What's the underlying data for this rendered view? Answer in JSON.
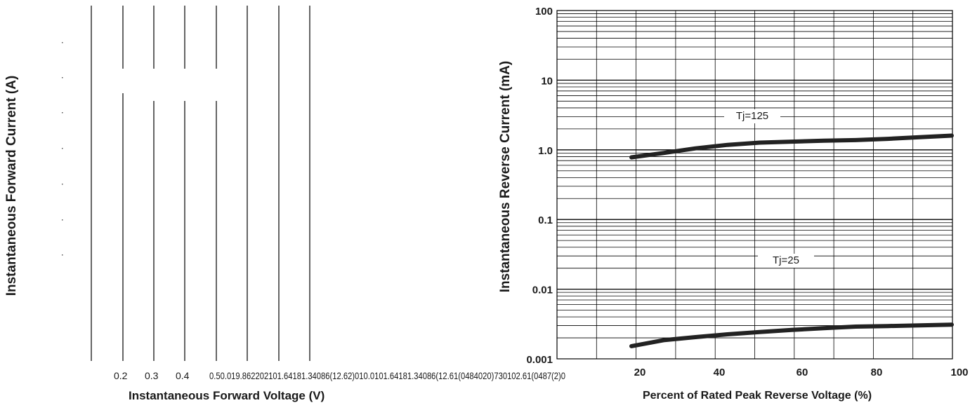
{
  "chart_data": [
    {
      "type": "line",
      "title": "",
      "xlabel": "Instantaneous Forward Voltage (V)",
      "ylabel": "Instantaneous Forward Current (A)",
      "x_tick_labels": [
        "0.2",
        "0.3",
        "0.4",
        "0.50.019.862202101.64181.34086(12.62)010.0101.64181.34086(12.61(0484020)730102.61(0487(2)0"
      ],
      "series": []
    },
    {
      "type": "line",
      "title": "",
      "xlabel": "Percent of Rated Peak Reverse Voltage (%)",
      "ylabel": "Instantaneous Reverse Current (mA)",
      "yscale": "log",
      "ylim": [
        0.001,
        100
      ],
      "xlim": [
        0,
        100
      ],
      "grid": true,
      "y_tick_labels": [
        "100",
        "10",
        "1.0",
        "0.1",
        "0.01",
        "0.001"
      ],
      "x_tick_labels": [
        "20",
        "40",
        "60",
        "80",
        "100"
      ],
      "x_tick_values": [
        20,
        40,
        60,
        80,
        100
      ],
      "series": [
        {
          "name": "Tj=125",
          "x": [
            0,
            10,
            20,
            30,
            40,
            50,
            60,
            70,
            80,
            90,
            100
          ],
          "y": [
            0.78,
            0.9,
            1.05,
            1.18,
            1.27,
            1.31,
            1.35,
            1.38,
            1.44,
            1.52,
            1.6
          ]
        },
        {
          "name": "Tj=25",
          "x": [
            0,
            10,
            20,
            30,
            40,
            50,
            60,
            70,
            80,
            90,
            100
          ],
          "y": [
            0.00152,
            0.00185,
            0.00205,
            0.00225,
            0.00242,
            0.0026,
            0.00275,
            0.0029,
            0.00296,
            0.00302,
            0.0031
          ]
        }
      ]
    }
  ]
}
